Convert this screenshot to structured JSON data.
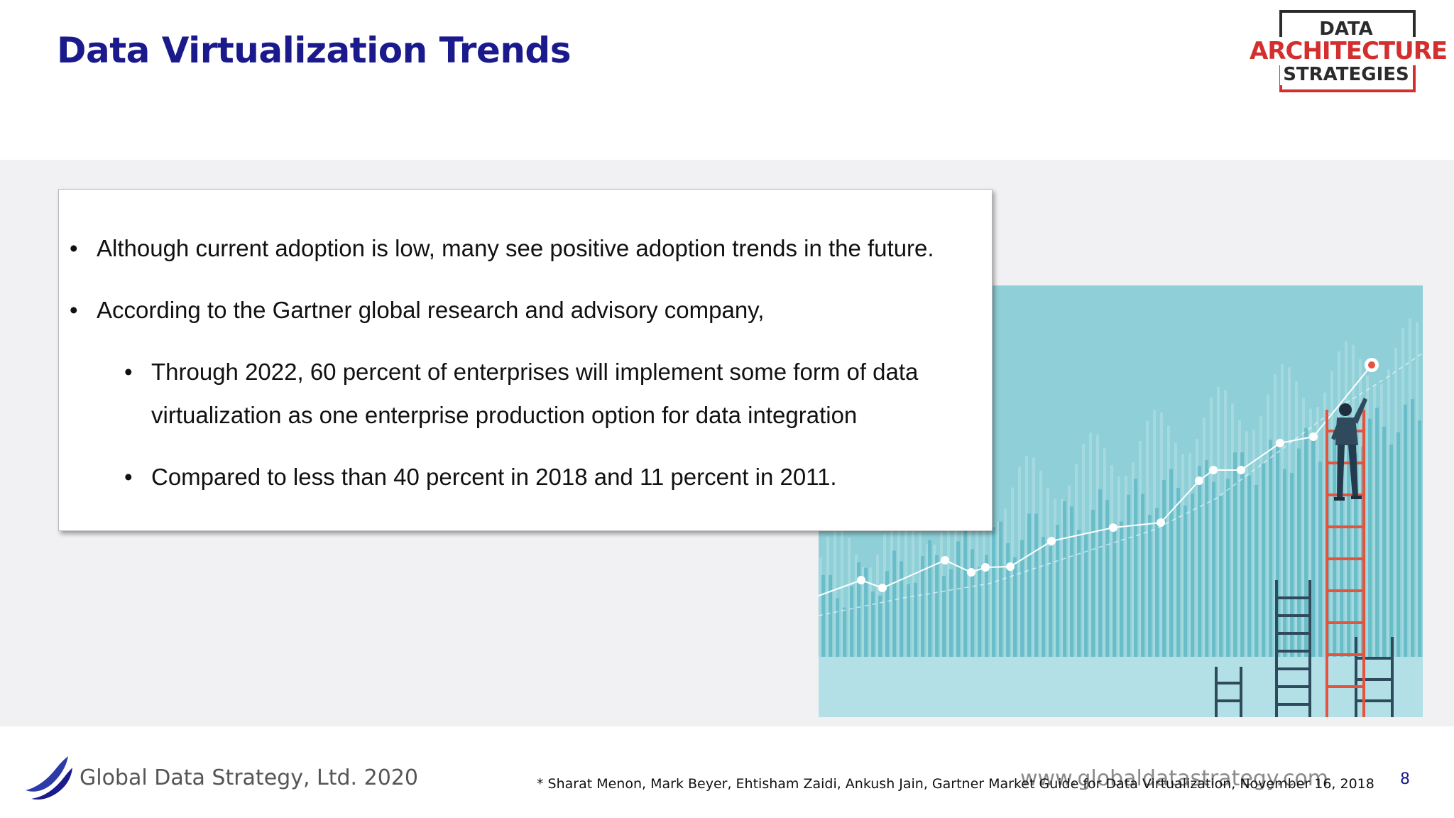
{
  "slide": {
    "title": "Data Virtualization Trends",
    "bullets": [
      "Although current adoption is low, many see positive adoption trends in the future.",
      "According to the Gartner global research and advisory company,"
    ],
    "sub_bullets": [
      "Through 2022, 60 percent of enterprises will implement some form of data virtualization as one enterprise production option for data integration",
      "Compared to less than 40 percent in 2018 and 11 percent in 2011."
    ],
    "bullet_symbol": "•"
  },
  "logo": {
    "line1": "DATA",
    "line2": "ARCHITECTURE",
    "line3": "STRATEGIES",
    "colors": {
      "dark": "#2b2b2b",
      "red": "#d32f2f"
    }
  },
  "footer": {
    "company": "Global Data Strategy, Ltd. 2020",
    "website": "www.globaldatastrategy.com",
    "citation": "* Sharat Menon, Mark Beyer, Ehtisham Zaidi, Ankush Jain, Gartner Market Guide for Data Virtualization, November 16, 2018",
    "page_number": "8"
  },
  "colors": {
    "title": "#1a1a8c",
    "illustration_bg": "#8fd0d8",
    "ladder_red": "#e5533d",
    "ladder_dark": "#2f4a5c"
  }
}
